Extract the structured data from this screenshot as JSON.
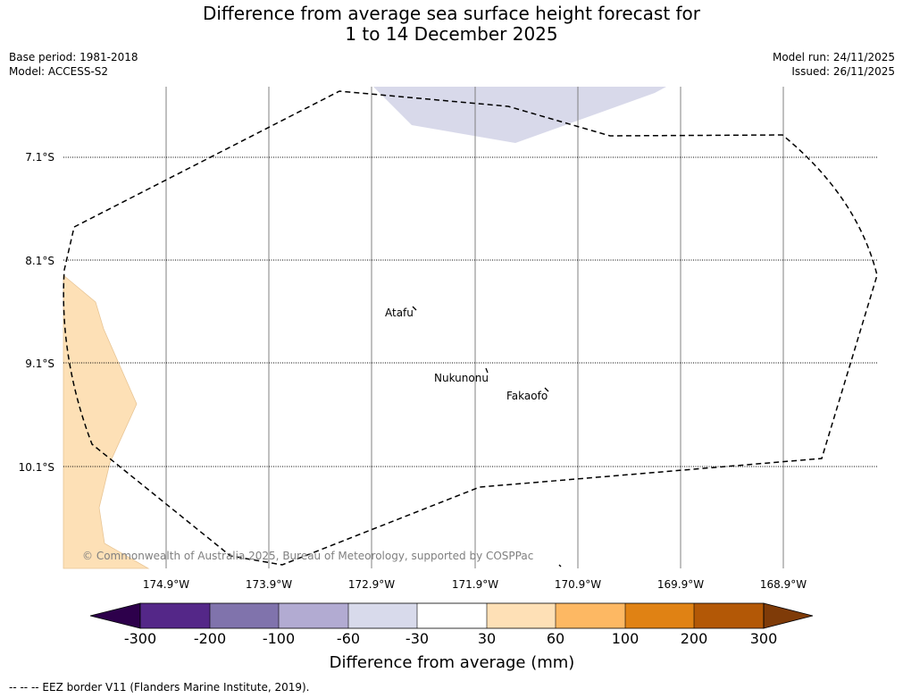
{
  "title": {
    "line1": "Difference from average sea surface height forecast for",
    "line2": "1 to 14 December 2025"
  },
  "meta": {
    "base_period": "Base period: 1981-2018",
    "model": "Model: ACCESS-S2",
    "model_run": "Model run: 24/11/2025",
    "issued": "Issued: 26/11/2025"
  },
  "map": {
    "lat_labels": [
      "7.1°S",
      "8.1°S",
      "9.1°S",
      "10.1°S"
    ],
    "lon_labels": [
      "174.9°W",
      "173.9°W",
      "172.9°W",
      "171.9°W",
      "170.9°W",
      "169.9°W",
      "168.9°W"
    ],
    "places": {
      "atafu": "Atafu",
      "nukunonu": "Nukunonu",
      "fakaofo": "Fakaofo"
    },
    "copyright": "© Commonwealth of Australia 2025, Bureau of Meteorology, supported by COSPPac",
    "colors": {
      "positive_anomaly": "#fde0b6",
      "negative_anomaly": "#d8d9ea"
    }
  },
  "colorbar": {
    "ticks": [
      "-300",
      "-200",
      "-100",
      "-60",
      "-30",
      "30",
      "60",
      "100",
      "200",
      "300"
    ],
    "colors": [
      "#2d004b",
      "#542788",
      "#8073ac",
      "#b2abd2",
      "#d8daeb",
      "#ffffff",
      "#fee0b6",
      "#fdb863",
      "#e08214",
      "#b35806",
      "#7f3b08"
    ],
    "label": "Difference from average (mm)"
  },
  "footer": "--  --  -- EEZ border V11 (Flanders Marine Institute, 2019)."
}
